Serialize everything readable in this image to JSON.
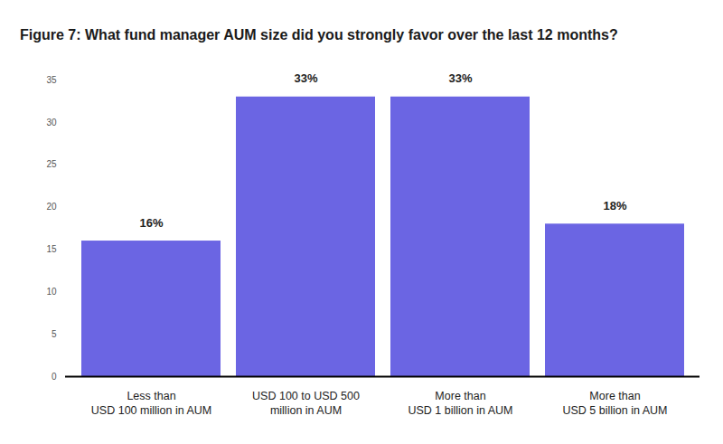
{
  "chart_data": {
    "type": "bar",
    "title": "Figure 7: What fund manager AUM size did you strongly favor over the last 12 months?",
    "categories": [
      "Less than\nUSD 100 million in AUM",
      "USD 100 to USD 500\nmillion in AUM",
      "More than\nUSD 1 billion in AUM",
      "More than\nUSD 5 billion in AUM"
    ],
    "values": [
      16,
      33,
      33,
      18
    ],
    "value_labels": [
      "16%",
      "33%",
      "33%",
      "18%"
    ],
    "data_labels": true,
    "color": "#6b65e3",
    "ylim": [
      0,
      35
    ],
    "yticks": [
      0,
      5,
      10,
      15,
      20,
      25,
      30,
      35
    ],
    "grid": false
  }
}
